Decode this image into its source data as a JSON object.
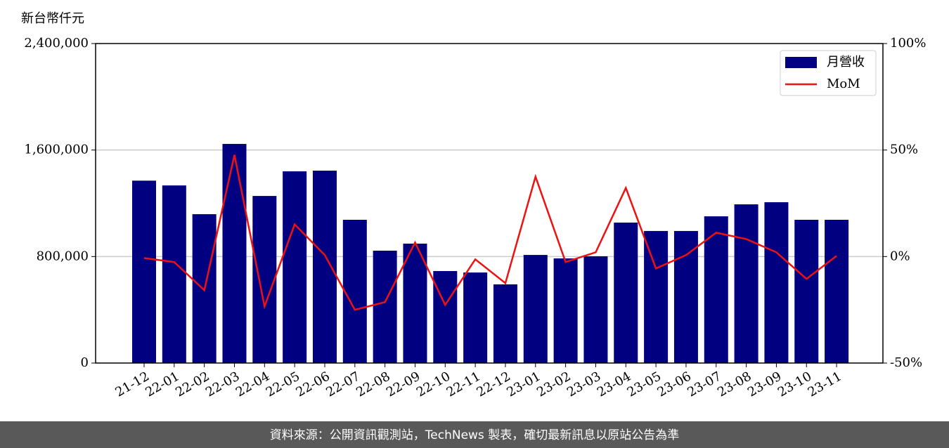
{
  "chart_data": {
    "type": "bar",
    "y_label": "新台幣仟元",
    "categories": [
      "21-12",
      "22-01",
      "22-02",
      "22-03",
      "22-04",
      "22-05",
      "22-06",
      "22-07",
      "22-08",
      "22-09",
      "22-10",
      "22-11",
      "22-12",
      "23-01",
      "23-02",
      "23-03",
      "23-04",
      "23-05",
      "23-06",
      "23-07",
      "23-08",
      "23-09",
      "23-10",
      "23-11"
    ],
    "series": [
      {
        "name": "月營收",
        "color": "#000080",
        "values": [
          1370000,
          1334000,
          1118000,
          1646000,
          1255000,
          1440000,
          1445000,
          1076000,
          844000,
          897000,
          691000,
          680000,
          591000,
          812000,
          786000,
          802000,
          1055000,
          992000,
          992000,
          1102000,
          1192000,
          1208000,
          1076000,
          1076000
        ]
      },
      {
        "name": "MoM",
        "color": "#ee1111",
        "axis": "y2",
        "type": "line",
        "values": [
          -0.7,
          -2.6,
          -15.8,
          47.7,
          -23.4,
          15.1,
          0.7,
          -25,
          -21.4,
          6.6,
          -22.7,
          -1.3,
          -12.5,
          37.5,
          -2.6,
          2,
          32.2,
          -5.6,
          0.7,
          11.2,
          8.2,
          2,
          -10.5,
          0.3
        ]
      }
    ],
    "ylim": [
      0,
      2400000
    ],
    "yticks": [
      0,
      {
        "value": 800000,
        "label": "800,000"
      },
      {
        "value": 1600000,
        "label": "1,600,000"
      },
      {
        "value": 2400000,
        "label": "2,400,000"
      }
    ],
    "y2lim": [
      -50,
      100
    ],
    "y2ticks": [
      {
        "value": -50,
        "label": "-50%"
      },
      {
        "value": 0,
        "label": "0%"
      },
      {
        "value": 50,
        "label": "50%"
      },
      {
        "value": 100,
        "label": "100%"
      }
    ],
    "grid": true,
    "legend": "upper right",
    "source": "資料來源：公開資訊觀測站，TechNews 製表，確切最新訊息以原站公告為準"
  }
}
